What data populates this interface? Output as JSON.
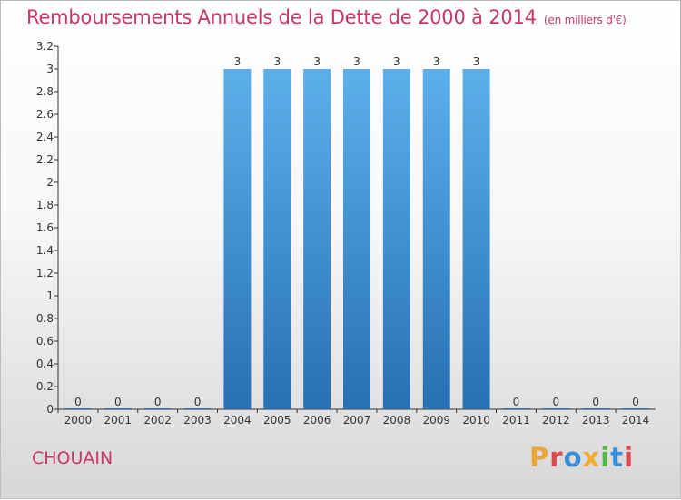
{
  "header": {
    "title": "Remboursements Annuels de la Dette de 2000 à 2014",
    "unit": "(en milliers d'€)"
  },
  "footer": {
    "municipality": "CHOUAIN",
    "brand": "Proxiti",
    "brand_colors": [
      "#e8a73a",
      "#e0484f",
      "#3a8fd6",
      "#f0ad2f",
      "#54b847",
      "#3a8fd6",
      "#e0484f"
    ]
  },
  "colors": {
    "accent": "#c8366b",
    "bar_top": "#5cb0ea",
    "bar_bottom": "#2770b3",
    "axis": "#333333"
  },
  "chart_data": {
    "type": "bar",
    "categories": [
      "2000",
      "2001",
      "2002",
      "2003",
      "2004",
      "2005",
      "2006",
      "2007",
      "2008",
      "2009",
      "2010",
      "2011",
      "2012",
      "2013",
      "2014"
    ],
    "values": [
      0,
      0,
      0,
      0,
      3,
      3,
      3,
      3,
      3,
      3,
      3,
      0,
      0,
      0,
      0
    ],
    "value_labels": [
      "0",
      "0",
      "0",
      "0",
      "3",
      "3",
      "3",
      "3",
      "3",
      "3",
      "3",
      "0",
      "0",
      "0",
      "0"
    ],
    "y_ticks": [
      "0",
      "0.2",
      "0.4",
      "0.6",
      "0.8",
      "1",
      "1.2",
      "1.4",
      "1.6",
      "1.8",
      "2",
      "2.2",
      "2.4",
      "2.6",
      "2.8",
      "3",
      "3.2"
    ],
    "ylim": [
      0,
      3.2
    ],
    "grid": false
  }
}
